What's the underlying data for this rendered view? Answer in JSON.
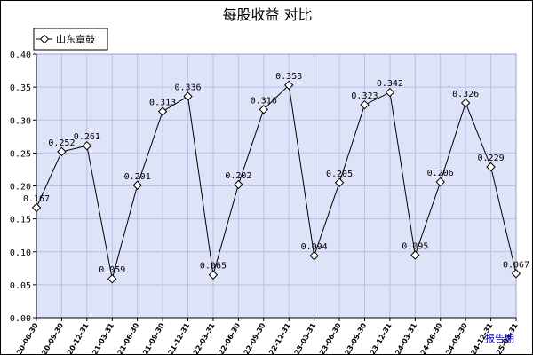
{
  "chart_data": {
    "type": "line",
    "title": "每股收益  对比",
    "xunit": "报告期",
    "legend": {
      "position": "top-left"
    },
    "grid": true,
    "ylim": [
      0,
      0.4
    ],
    "yticks": [
      "0.00",
      "0.05",
      "0.10",
      "0.15",
      "0.20",
      "0.25",
      "0.30",
      "0.35",
      "0.40"
    ],
    "categories": [
      "2020-06-30",
      "2020-09-30",
      "2020-12-31",
      "2021-03-31",
      "2021-06-30",
      "2021-09-30",
      "2021-12-31",
      "2022-03-31",
      "2022-06-30",
      "2022-09-30",
      "2022-12-31",
      "2023-03-31",
      "2023-06-30",
      "2023-09-30",
      "2023-12-31",
      "2024-03-31",
      "2024-06-30",
      "2024-09-30",
      "2024-12-31",
      "2025-03-31"
    ],
    "series": [
      {
        "name": "山东章鼓",
        "values": [
          0.167,
          0.252,
          0.261,
          0.059,
          0.201,
          0.313,
          0.336,
          0.065,
          0.202,
          0.316,
          0.353,
          0.094,
          0.205,
          0.323,
          0.342,
          0.095,
          0.206,
          0.326,
          0.229,
          0.067
        ],
        "labels": [
          "0.167",
          "0.252",
          "0.261",
          "0.059",
          "0.201",
          "0.313",
          "0.336",
          "0.065",
          "0.202",
          "0.316",
          "0.353",
          "0.094",
          "0.205",
          "0.323",
          "0.342",
          "0.095",
          "0.206",
          "0.326",
          "0.229",
          "0.067"
        ]
      }
    ],
    "colors": {
      "plot_bg": "#dfe3f8",
      "grid": "#b8c0e6",
      "line": "#000000",
      "marker_fill": "#ffffff",
      "unit_text": "#0000cc"
    }
  }
}
